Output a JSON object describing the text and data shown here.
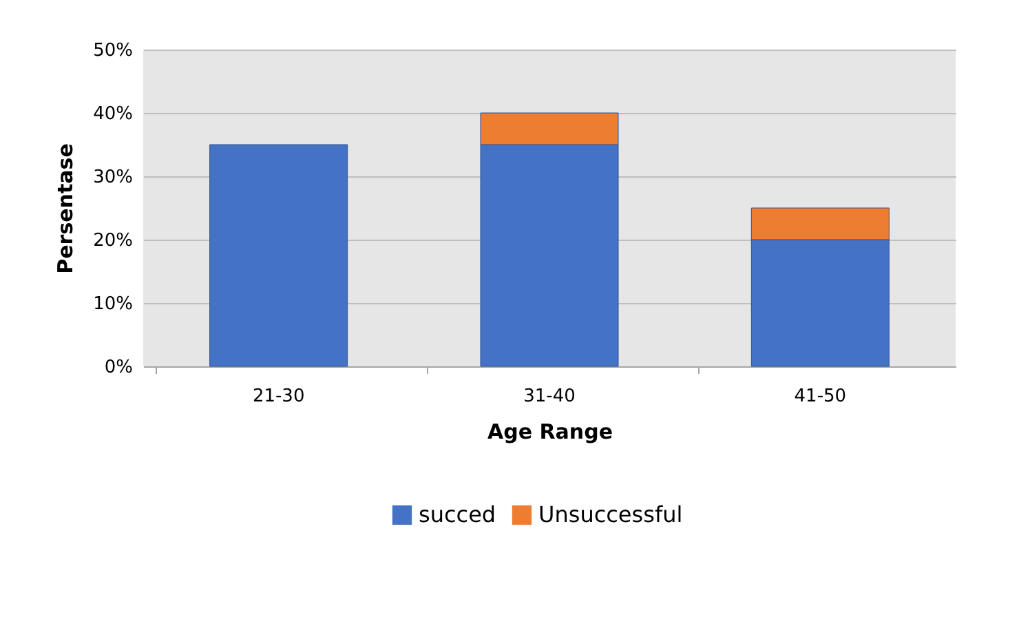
{
  "chart_data": {
    "type": "bar",
    "stacked": true,
    "xlabel": "Age Range",
    "ylabel": "Persentase",
    "categories": [
      "21-30",
      "31-40",
      "41-50"
    ],
    "series": [
      {
        "name": "succed",
        "color": "#4472c4",
        "values": [
          35,
          35,
          20
        ]
      },
      {
        "name": "Unsuccessful",
        "color": "#ed7d31",
        "values": [
          null,
          5,
          5
        ]
      }
    ],
    "ylim": [
      0,
      50
    ],
    "yticks": [
      {
        "value": 0,
        "label": "0%"
      },
      {
        "value": 10,
        "label": "10%"
      },
      {
        "value": 20,
        "label": "20%"
      },
      {
        "value": 30,
        "label": "30%"
      },
      {
        "value": 40,
        "label": "40%"
      },
      {
        "value": 50,
        "label": "50%"
      }
    ],
    "grid": "y",
    "legend": "bottom"
  }
}
